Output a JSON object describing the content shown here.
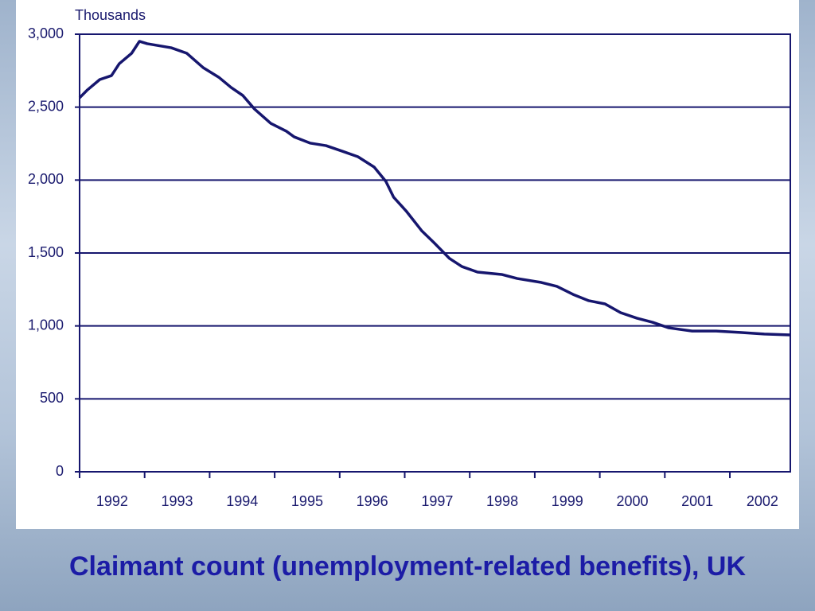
{
  "chart_data": {
    "type": "line",
    "title": "Claimant count (unemployment-related benefits), UK",
    "y_label": "Thousands",
    "x": [
      1992,
      1992.12,
      1992.31,
      1992.49,
      1992.61,
      1992.8,
      1992.92,
      1993.04,
      1993.41,
      1993.65,
      1993.9,
      1994.14,
      1994.33,
      1994.51,
      1994.69,
      1994.94,
      1995.18,
      1995.3,
      1995.55,
      1995.79,
      1996.04,
      1996.28,
      1996.53,
      1996.71,
      1996.83,
      1997.02,
      1997.26,
      1997.45,
      1997.69,
      1997.88,
      1998.12,
      1998.49,
      1998.73,
      1999.1,
      1999.34,
      1999.59,
      1999.83,
      2000.08,
      2000.32,
      2000.57,
      2000.81,
      2001.06,
      2001.42,
      2001.79,
      2002.16,
      2002.53,
      2002.93
    ],
    "series": [
      {
        "color": "#16166e",
        "values": [
          2564,
          2618,
          2689,
          2716,
          2798,
          2869,
          2951,
          2935,
          2907,
          2869,
          2771,
          2705,
          2635,
          2580,
          2487,
          2389,
          2335,
          2296,
          2253,
          2236,
          2198,
          2160,
          2089,
          1991,
          1882,
          1789,
          1653,
          1571,
          1462,
          1407,
          1369,
          1353,
          1325,
          1298,
          1271,
          1216,
          1173,
          1151,
          1091,
          1053,
          1025,
          987,
          965,
          965,
          955,
          944,
          938
        ]
      }
    ],
    "xlim": [
      1992,
      2002.93
    ],
    "xticks": [
      1992,
      1993,
      1994,
      1995,
      1996,
      1997,
      1998,
      1999,
      2000,
      2001,
      2002
    ],
    "ylim": [
      0,
      3000
    ],
    "yticks": [
      0,
      500,
      {
        "value": 1000,
        "label": "1,000"
      },
      {
        "value": 1500,
        "label": "1,500"
      },
      {
        "value": 2000,
        "label": "2,000"
      },
      {
        "value": 2500,
        "label": "2,500"
      },
      {
        "value": 3000,
        "label": "3,000"
      }
    ],
    "grid": true
  }
}
